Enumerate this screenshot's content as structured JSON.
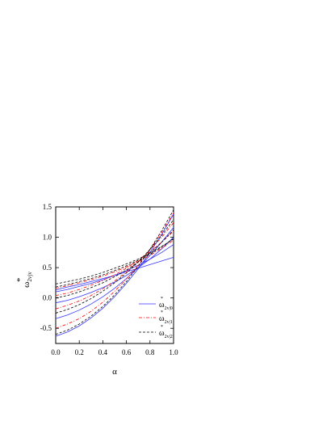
{
  "chart_data": {
    "type": "line",
    "title": "",
    "xlabel": "α",
    "ylabel": {
      "main": "ω",
      "sup": "*",
      "sub": "2vjv"
    },
    "xlim": [
      0.0,
      1.0
    ],
    "ylim": [
      -0.75,
      1.5
    ],
    "xticks": [
      "0.0",
      "0.2",
      "0.4",
      "0.6",
      "0.8",
      "1.0"
    ],
    "yticks": [
      "-0.5",
      "0.0",
      "0.5",
      "1.0",
      "1.5"
    ],
    "xtick_values": [
      0.0,
      0.2,
      0.4,
      0.6,
      0.8,
      1.0
    ],
    "ytick_values": [
      -0.5,
      0.0,
      0.5,
      1.0,
      1.5
    ],
    "grid": false,
    "legend_position": "bottom-right",
    "legend": [
      {
        "main": "ω",
        "sup": "*",
        "sub": "2v|0",
        "color": "#3333ff",
        "dash": "solid"
      },
      {
        "main": "ω",
        "sup": "*",
        "sub": "2v|1",
        "color": "#ff0000",
        "dash": "dashdot"
      },
      {
        "main": "ω",
        "sup": "*",
        "sub": "2v|2",
        "color": "#000000",
        "dash": "dashed"
      }
    ],
    "x": [
      0.0,
      0.1,
      0.2,
      0.3,
      0.4,
      0.5,
      0.6,
      0.7,
      0.8,
      0.9,
      1.0
    ],
    "series": [
      {
        "group": 0,
        "color": "#3333ff",
        "dash": "solid",
        "values": [
          -0.63,
          -0.56,
          -0.46,
          -0.33,
          -0.17,
          0.02,
          0.24,
          0.48,
          0.75,
          1.05,
          1.38
        ]
      },
      {
        "group": 0,
        "color": "#3333ff",
        "dash": "solid",
        "values": [
          -0.34,
          -0.28,
          -0.2,
          -0.1,
          0.02,
          0.16,
          0.32,
          0.5,
          0.7,
          0.92,
          1.16
        ]
      },
      {
        "group": 0,
        "color": "#3333ff",
        "dash": "solid",
        "values": [
          -0.08,
          -0.04,
          0.02,
          0.09,
          0.17,
          0.26,
          0.37,
          0.5,
          0.64,
          0.81,
          1.0
        ]
      },
      {
        "group": 0,
        "color": "#3333ff",
        "dash": "solid",
        "values": [
          0.1,
          0.14,
          0.19,
          0.24,
          0.3,
          0.37,
          0.45,
          0.54,
          0.64,
          0.75,
          0.88
        ]
      },
      {
        "group": 0,
        "color": "#3333ff",
        "dash": "solid",
        "values": [
          0.13,
          0.18,
          0.22,
          0.27,
          0.32,
          0.37,
          0.43,
          0.49,
          0.55,
          0.61,
          0.67
        ]
      },
      {
        "group": 1,
        "color": "#ff0000",
        "dash": "dashdot",
        "values": [
          -0.5,
          -0.43,
          -0.34,
          -0.22,
          -0.07,
          0.11,
          0.31,
          0.54,
          0.8,
          1.08,
          1.4
        ]
      },
      {
        "group": 1,
        "color": "#ff0000",
        "dash": "dashdot",
        "values": [
          -0.18,
          -0.12,
          -0.05,
          0.04,
          0.15,
          0.28,
          0.43,
          0.6,
          0.79,
          1.0,
          1.24
        ]
      },
      {
        "group": 1,
        "color": "#ff0000",
        "dash": "dashdot",
        "values": [
          0.04,
          0.08,
          0.14,
          0.21,
          0.29,
          0.38,
          0.49,
          0.62,
          0.76,
          0.92,
          1.1
        ]
      },
      {
        "group": 1,
        "color": "#ff0000",
        "dash": "dashdot",
        "values": [
          0.16,
          0.2,
          0.25,
          0.3,
          0.36,
          0.43,
          0.51,
          0.6,
          0.7,
          0.82,
          0.95
        ]
      },
      {
        "group": 2,
        "color": "#000000",
        "dash": "dashed",
        "values": [
          -0.6,
          -0.53,
          -0.43,
          -0.3,
          -0.14,
          0.05,
          0.27,
          0.52,
          0.8,
          1.11,
          1.45
        ]
      },
      {
        "group": 2,
        "color": "#000000",
        "dash": "dashed",
        "values": [
          -0.25,
          -0.19,
          -0.11,
          -0.01,
          0.11,
          0.25,
          0.41,
          0.59,
          0.8,
          1.03,
          1.29
        ]
      },
      {
        "group": 2,
        "color": "#000000",
        "dash": "dashed",
        "values": [
          0.0,
          0.04,
          0.1,
          0.17,
          0.25,
          0.35,
          0.46,
          0.59,
          0.74,
          0.92,
          1.12
        ]
      },
      {
        "group": 2,
        "color": "#000000",
        "dash": "dashed",
        "values": [
          0.18,
          0.22,
          0.27,
          0.32,
          0.38,
          0.45,
          0.53,
          0.62,
          0.72,
          0.84,
          0.98
        ]
      },
      {
        "group": 2,
        "color": "#000000",
        "dash": "dashed",
        "values": [
          0.23,
          0.27,
          0.31,
          0.36,
          0.42,
          0.49,
          0.56,
          0.64,
          0.74,
          0.85,
          0.97
        ]
      }
    ]
  }
}
